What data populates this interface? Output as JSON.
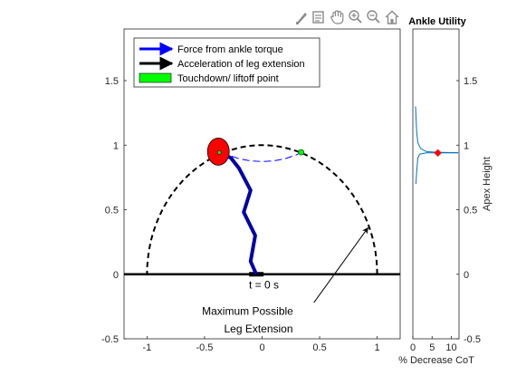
{
  "toolbar": {
    "icons": [
      "brush-icon",
      "data-tip-icon",
      "pan-icon",
      "zoom-in-icon",
      "zoom-out-icon",
      "home-icon"
    ]
  },
  "chart_data": [
    {
      "type": "line",
      "panel": "main",
      "title": "",
      "xlabel": "",
      "ylabel": "",
      "xlim": [
        -1.2,
        1.2
      ],
      "ylim": [
        -0.5,
        1.9
      ],
      "xticks": [
        "-1",
        "-0.5",
        "0",
        "0.5",
        "1"
      ],
      "yticks": [
        "-0.5",
        "0",
        "0.5",
        "1",
        "1.5"
      ],
      "grid": false,
      "legend_position": "top-left",
      "legend": [
        {
          "label": "Force from ankle torque",
          "color": "#0000ff",
          "style": "arrow"
        },
        {
          "label": "Acceleration of leg extension",
          "color": "#000000",
          "style": "arrow"
        },
        {
          "label": "Touchdown/ liftoff point",
          "color": "#00ff00",
          "style": "patch"
        }
      ],
      "max_extension_arc": {
        "center": [
          0,
          0
        ],
        "radius": 1.0,
        "color": "#000000"
      },
      "ground_y": 0,
      "mass": {
        "x": -0.38,
        "y": 0.95,
        "color": "#ff0000"
      },
      "foot_x": -0.05,
      "flight_path": {
        "x": [
          -0.35,
          -0.3,
          -0.2,
          -0.1,
          0.0,
          0.1,
          0.2,
          0.3,
          0.34
        ],
        "y": [
          0.945,
          0.925,
          0.895,
          0.878,
          0.873,
          0.878,
          0.895,
          0.925,
          0.945
        ],
        "color": "#0000ff"
      },
      "liftoff_point": {
        "x": 0.34,
        "y": 0.945
      },
      "leg": {
        "x": [
          -0.05,
          -0.1,
          -0.06,
          -0.16,
          -0.1,
          -0.2,
          -0.27,
          -0.33
        ],
        "y": [
          0.0,
          0.1,
          0.3,
          0.48,
          0.65,
          0.82,
          0.9,
          0.93
        ],
        "color": "#0000aa"
      },
      "annotations": [
        {
          "text": "t = 0 s",
          "x": 0.0,
          "y": -0.11
        },
        {
          "text": "Maximum Possible",
          "x": 0.0,
          "y": -0.3
        },
        {
          "text": "Leg Extension",
          "x": 0.2,
          "y": -0.4
        },
        {
          "arrow_from": [
            0.45,
            -0.22
          ],
          "arrow_to": [
            0.92,
            0.36
          ]
        }
      ]
    },
    {
      "type": "line",
      "panel": "side",
      "title": "Ankle Utility",
      "xlabel": "% Decrease CoT",
      "ylabel": "Apex Height",
      "xlim": [
        0,
        12
      ],
      "ylim": [
        -0.5,
        1.9
      ],
      "xticks": [
        "0",
        "5",
        "10"
      ],
      "yticks": [
        "-0.5",
        "0",
        "0.5",
        "1",
        "1.5"
      ],
      "series": [
        {
          "color": "#0072bd",
          "x": [
            0.9,
            2.0,
            3.5,
            5.0,
            6.5,
            8.0,
            10.0,
            11.5,
            2.0,
            1.2,
            1.0,
            0.8
          ],
          "y": [
            0.98,
            0.965,
            0.95,
            0.945,
            0.94,
            0.937,
            0.935,
            0.93,
            1.0,
            1.05,
            1.15,
            1.25
          ],
          "segments": [
            [
              0.8,
              0.7
            ],
            [
              1.0,
              0.8
            ],
            [
              1.3,
              0.9
            ],
            [
              1.8,
              0.93
            ],
            [
              3.5,
              0.94
            ],
            [
              6.5,
              0.94
            ],
            [
              9.0,
              0.94
            ],
            [
              11.8,
              0.94
            ]
          ]
        }
      ],
      "marker": {
        "x": 6.5,
        "y": 0.94,
        "color": "#ff0000"
      }
    }
  ]
}
